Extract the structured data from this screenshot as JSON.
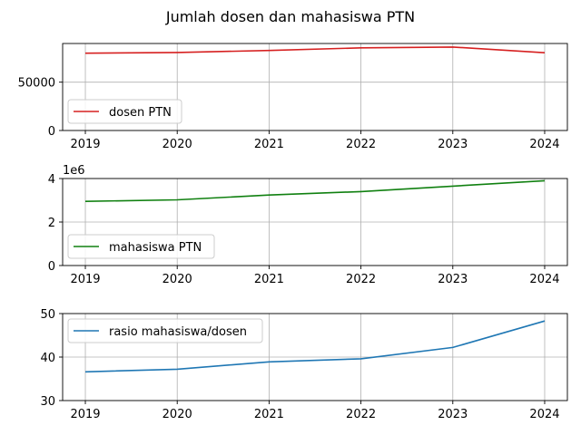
{
  "title": "Jumlah dosen dan mahasiswa PTN",
  "chart_data": [
    {
      "type": "line",
      "x": [
        "2019",
        "2020",
        "2021",
        "2022",
        "2023",
        "2024"
      ],
      "series": [
        {
          "name": "dosen PTN",
          "color": "#d62020",
          "values": [
            80000,
            80700,
            82800,
            85500,
            86300,
            80400
          ]
        }
      ],
      "ylim": [
        0,
        90000
      ],
      "yticks": [
        0,
        50000
      ],
      "ytick_labels": [
        "0",
        "50000"
      ],
      "offset_label": "",
      "grid": true,
      "legend_position": "lower-left"
    },
    {
      "type": "line",
      "x": [
        "2019",
        "2020",
        "2021",
        "2022",
        "2023",
        "2024"
      ],
      "series": [
        {
          "name": "mahasiswa PTN",
          "color": "#108010",
          "values": [
            2950000,
            3020000,
            3240000,
            3400000,
            3650000,
            3900000
          ]
        }
      ],
      "ylim": [
        0,
        4000000
      ],
      "yticks": [
        0,
        2000000,
        4000000
      ],
      "ytick_labels": [
        "0",
        "2",
        "4"
      ],
      "offset_label": "1e6",
      "grid": true,
      "legend_position": "lower-left"
    },
    {
      "type": "line",
      "x": [
        "2019",
        "2020",
        "2021",
        "2022",
        "2023",
        "2024"
      ],
      "series": [
        {
          "name": "rasio mahasiswa/dosen",
          "color": "#1f77b4",
          "values": [
            36.6,
            37.2,
            38.9,
            39.6,
            42.2,
            48.3
          ]
        }
      ],
      "ylim": [
        30,
        50
      ],
      "yticks": [
        30,
        40,
        50
      ],
      "ytick_labels": [
        "30",
        "40",
        "50"
      ],
      "offset_label": "",
      "grid": true,
      "legend_position": "upper-left"
    }
  ]
}
